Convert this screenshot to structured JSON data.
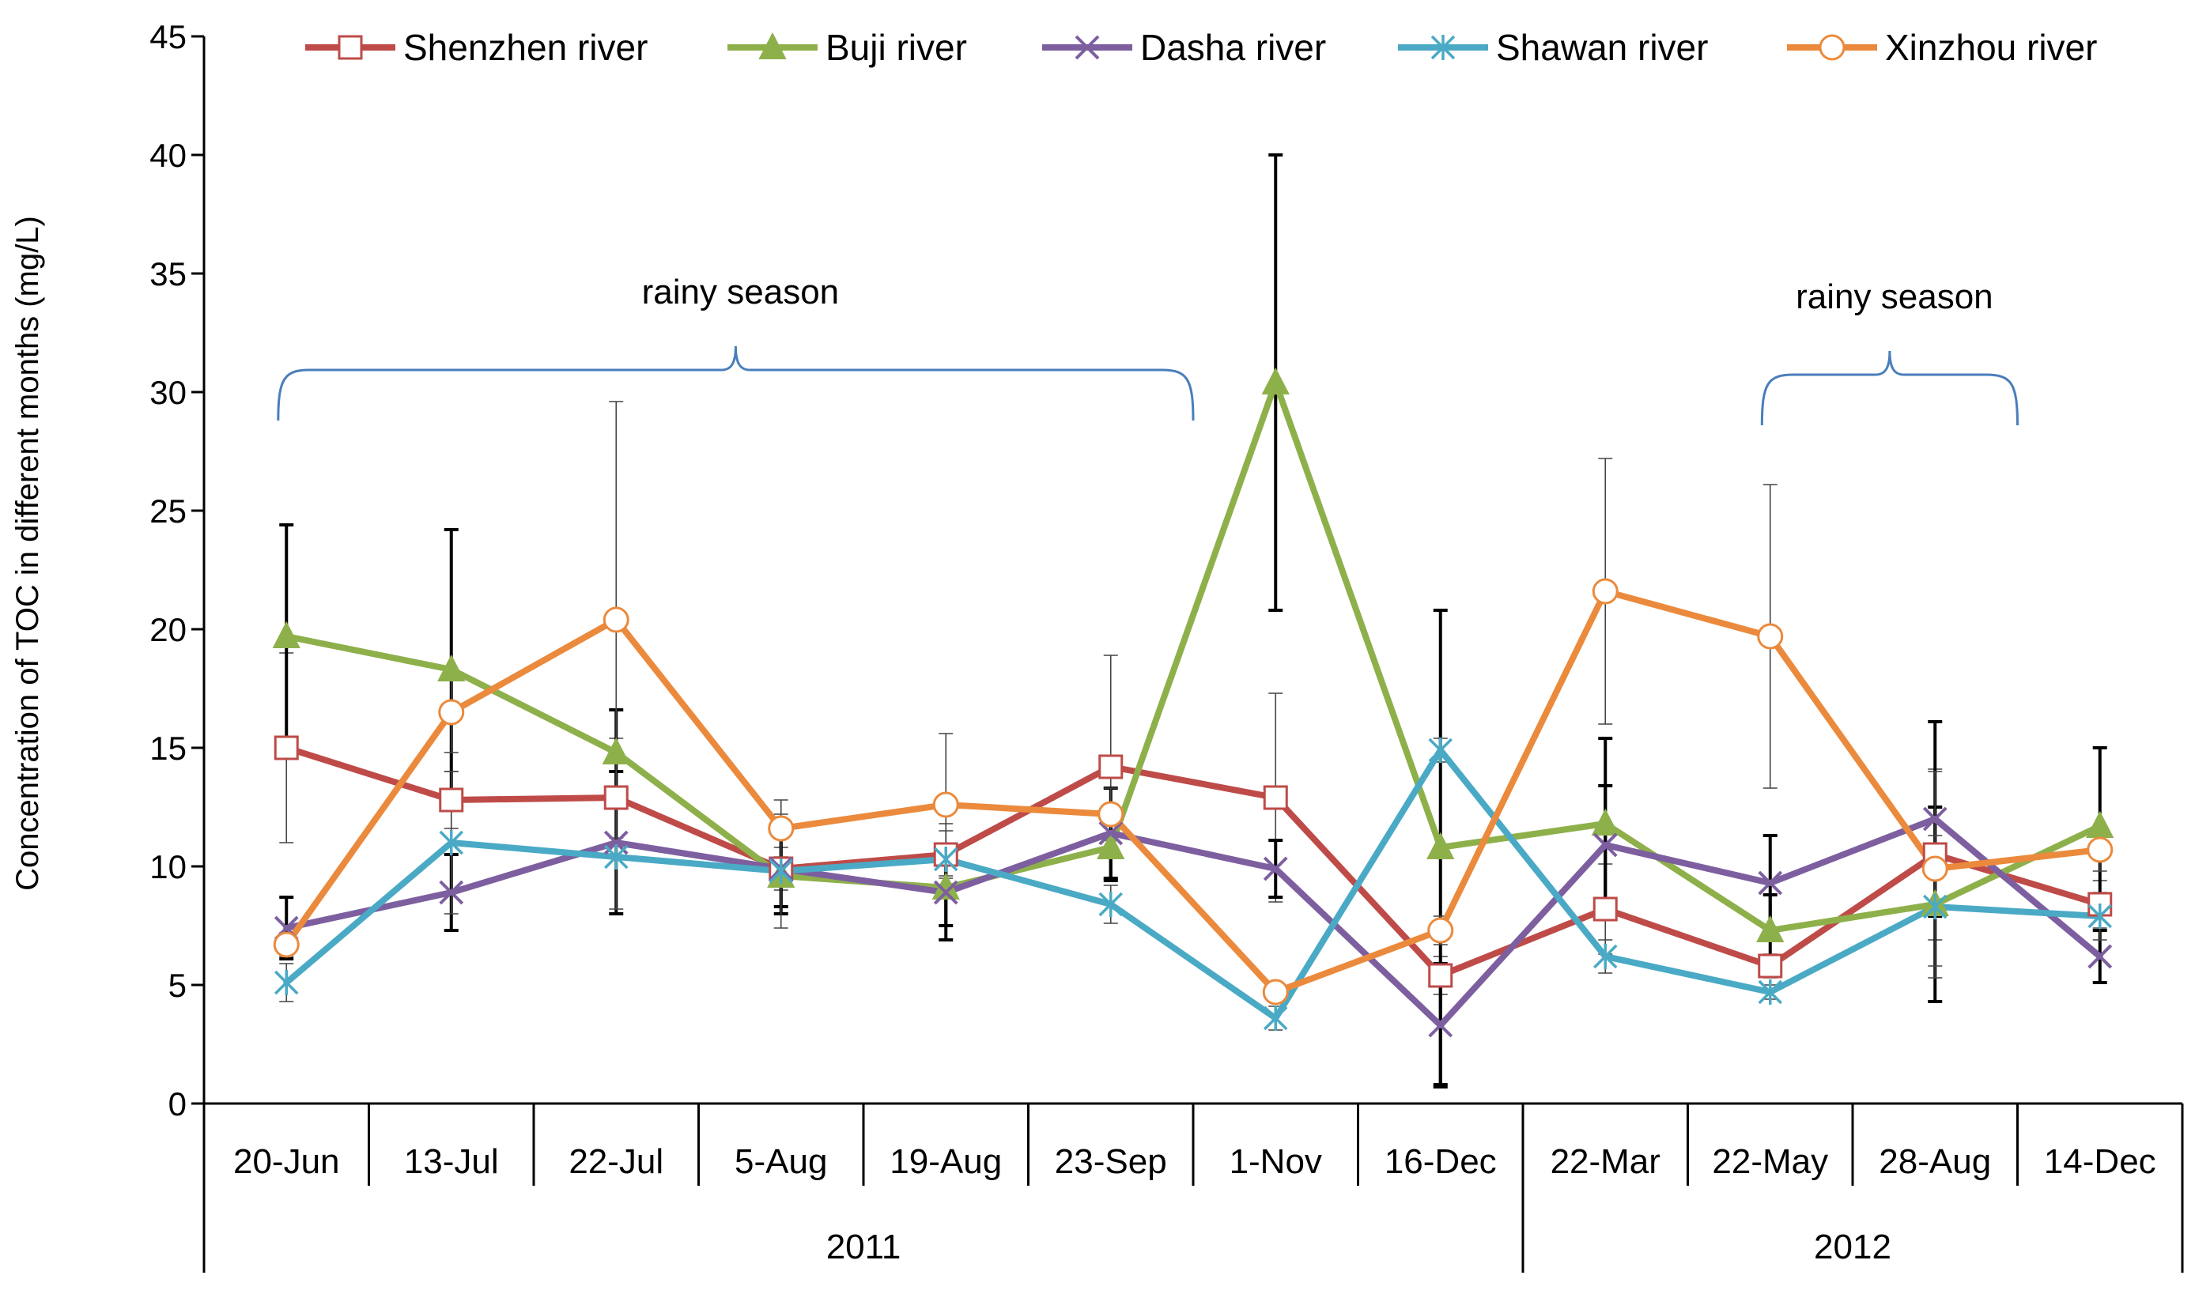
{
  "chart_data": {
    "type": "line",
    "title": "",
    "xlabel": "",
    "ylabel": "Concentration of TOC in different months (mg/L)",
    "ylim": [
      0,
      45
    ],
    "yticks": [
      0,
      5,
      10,
      15,
      20,
      25,
      30,
      35,
      40,
      45
    ],
    "categories": [
      "20-Jun",
      "13-Jul",
      "22-Jul",
      "5-Aug",
      "19-Aug",
      "23-Sep",
      "1-Nov",
      "16-Dec",
      "22-Mar",
      "22-May",
      "28-Aug",
      "14-Dec"
    ],
    "years": [
      {
        "label": "2011",
        "start_index": 0,
        "end_index": 7
      },
      {
        "label": "2012",
        "start_index": 8,
        "end_index": 11
      }
    ],
    "legend_position": "top",
    "annotations": [
      {
        "text": "rainy season",
        "start_index": 0,
        "end_index": 5
      },
      {
        "text": "rainy season",
        "start_index": 9,
        "end_index": 10
      }
    ],
    "series": [
      {
        "name": "Shenzhen river",
        "color": "#BE4B48",
        "marker": "square-open",
        "values": [
          15.0,
          12.8,
          12.9,
          9.9,
          10.5,
          14.2,
          12.9,
          5.4,
          8.2,
          5.8,
          10.5,
          8.4
        ],
        "error": [
          4.0,
          1.2,
          2.5,
          0.9,
          1.0,
          4.7,
          4.4,
          0.8,
          1.9,
          0.5,
          3.6,
          1.0
        ]
      },
      {
        "name": "Buji river",
        "color": "#8EB04A",
        "marker": "triangle",
        "values": [
          19.7,
          18.3,
          14.8,
          9.6,
          9.1,
          10.8,
          30.4,
          10.8,
          11.8,
          7.3,
          8.4,
          11.7
        ],
        "error": [
          4.7,
          5.9,
          1.8,
          1.6,
          1.6,
          1.4,
          9.6,
          10.0,
          3.6,
          1.5,
          4.1,
          3.3
        ]
      },
      {
        "name": "Dasha river",
        "color": "#7D5FA0",
        "marker": "x",
        "values": [
          7.4,
          8.9,
          11.0,
          9.9,
          8.9,
          11.4,
          9.9,
          3.3,
          10.9,
          9.3,
          12.0,
          6.2
        ],
        "error": [
          1.3,
          1.6,
          3.0,
          1.6,
          2.0,
          1.9,
          1.2,
          2.6,
          2.5,
          2.0,
          4.1,
          1.1
        ]
      },
      {
        "name": "Shawan river",
        "color": "#4AAAC5",
        "marker": "asterisk",
        "values": [
          5.1,
          11.0,
          10.4,
          9.8,
          10.3,
          8.4,
          3.6,
          14.9,
          6.2,
          4.7,
          8.3,
          7.9
        ],
        "error": [
          0.8,
          3.0,
          2.2,
          2.4,
          1.5,
          0.8,
          0.5,
          0.5,
          0.7,
          0.3,
          3.0,
          1.0
        ]
      },
      {
        "name": "Xinzhou river",
        "color": "#EB8A3C",
        "marker": "circle-open",
        "values": [
          6.7,
          16.5,
          20.4,
          11.6,
          12.6,
          12.2,
          4.7,
          7.3,
          21.6,
          19.7,
          9.9,
          10.7
        ],
        "error": [
          0.5,
          1.7,
          9.2,
          1.2,
          3.0,
          1.1,
          0.3,
          0.6,
          5.6,
          6.4,
          4.1,
          0.9
        ]
      }
    ]
  }
}
